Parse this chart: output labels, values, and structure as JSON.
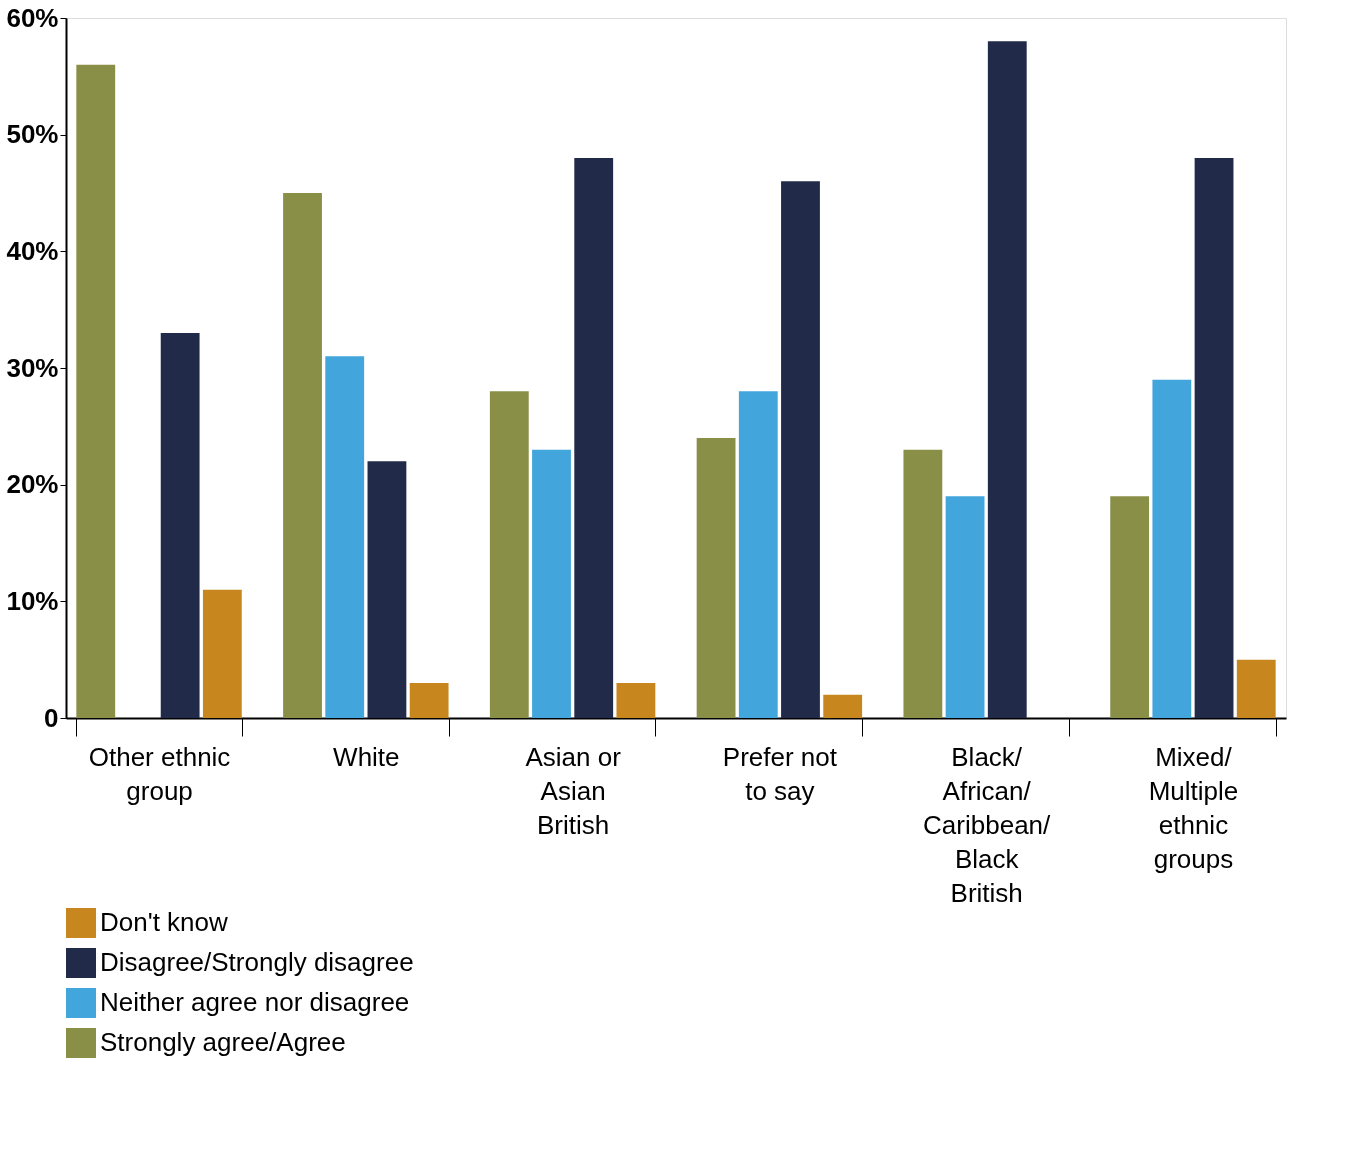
{
  "chart_data": {
    "type": "bar",
    "categories": [
      "Other ethnic group",
      "White",
      "Asian or Asian British",
      "Prefer not to say",
      "Black/African/Caribbean/Black British",
      "Mixed/Multiple ethnic groups"
    ],
    "series": [
      {
        "name": "Strongly agree/Agree",
        "color": "#8a8f48",
        "values": [
          56,
          45,
          28,
          24,
          23,
          19
        ]
      },
      {
        "name": "Neither agree nor disagree",
        "color": "#42a5dc",
        "values": [
          null,
          31,
          23,
          28,
          19,
          29
        ]
      },
      {
        "name": "Disagree/Strongly disagree",
        "color": "#212a48",
        "values": [
          33,
          22,
          48,
          46,
          58,
          48
        ]
      },
      {
        "name": "Don't know",
        "color": "#c8861e",
        "values": [
          11,
          3,
          3,
          2,
          null,
          5
        ]
      }
    ],
    "ylim": [
      0,
      60
    ],
    "yticks": [
      0,
      {
        "value": 10,
        "label": "10%"
      },
      {
        "value": 20,
        "label": "20%"
      },
      {
        "value": 30,
        "label": "30%"
      },
      {
        "value": 40,
        "label": "40%"
      },
      {
        "value": 50,
        "label": "50%"
      },
      {
        "value": 60,
        "label": "60%"
      }
    ],
    "grid": false,
    "legend": "bottom left"
  }
}
